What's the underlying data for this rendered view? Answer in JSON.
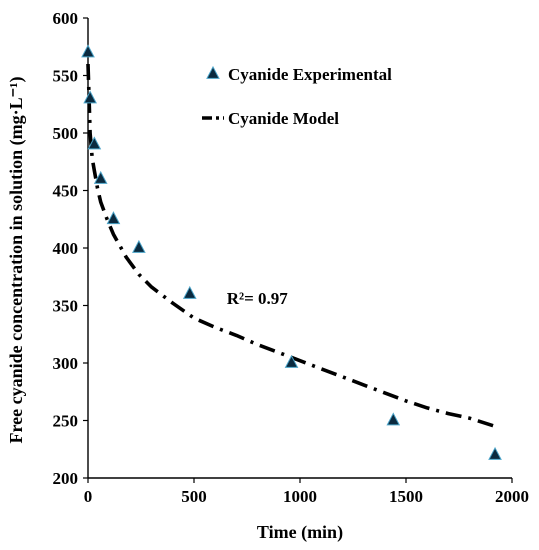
{
  "chart_data": {
    "type": "scatter",
    "xlabel": "Time (min)",
    "ylabel": "Free cyanide concentration in solution (mg·L⁻¹)",
    "xlim": [
      0,
      2000
    ],
    "ylim": [
      200,
      600
    ],
    "x_ticks": [
      0,
      500,
      1000,
      1500,
      2000
    ],
    "y_ticks": [
      200,
      250,
      300,
      350,
      400,
      450,
      500,
      550,
      600
    ],
    "x_tick_labels": [
      "0",
      "500",
      "1000",
      "1500",
      "2000"
    ],
    "y_tick_labels": [
      "200",
      "250",
      "300",
      "350",
      "400",
      "450",
      "500",
      "550",
      "600"
    ],
    "grid": false,
    "legend_position": "top-right",
    "series": [
      {
        "name": "Cyanide Experimental",
        "marker": "triangle",
        "color": "#0b2a3f",
        "edge_color": "#4aa3c8",
        "x": [
          0,
          10,
          30,
          60,
          120,
          240,
          480,
          960,
          1440,
          1920
        ],
        "y": [
          570,
          530,
          490,
          460,
          425,
          400,
          360,
          300,
          250,
          220
        ]
      },
      {
        "name": "Cyanide Model",
        "line": "dash-dot",
        "color": "#000000",
        "x": [
          0,
          5,
          10,
          20,
          30,
          45,
          60,
          90,
          120,
          180,
          240,
          300,
          400,
          500,
          600,
          700,
          800,
          900,
          1000,
          1100,
          1200,
          1300,
          1400,
          1500,
          1600,
          1700,
          1800,
          1920
        ],
        "y": [
          560,
          530,
          500,
          478,
          467,
          452,
          440,
          425,
          412,
          392,
          377,
          366,
          352,
          339,
          331,
          324,
          316,
          309,
          302,
          295,
          288,
          281,
          274,
          267,
          261,
          256,
          252,
          245
        ]
      }
    ],
    "annotations": [
      {
        "text": "R²= 0.97",
        "x": 730,
        "y": 340
      }
    ]
  }
}
